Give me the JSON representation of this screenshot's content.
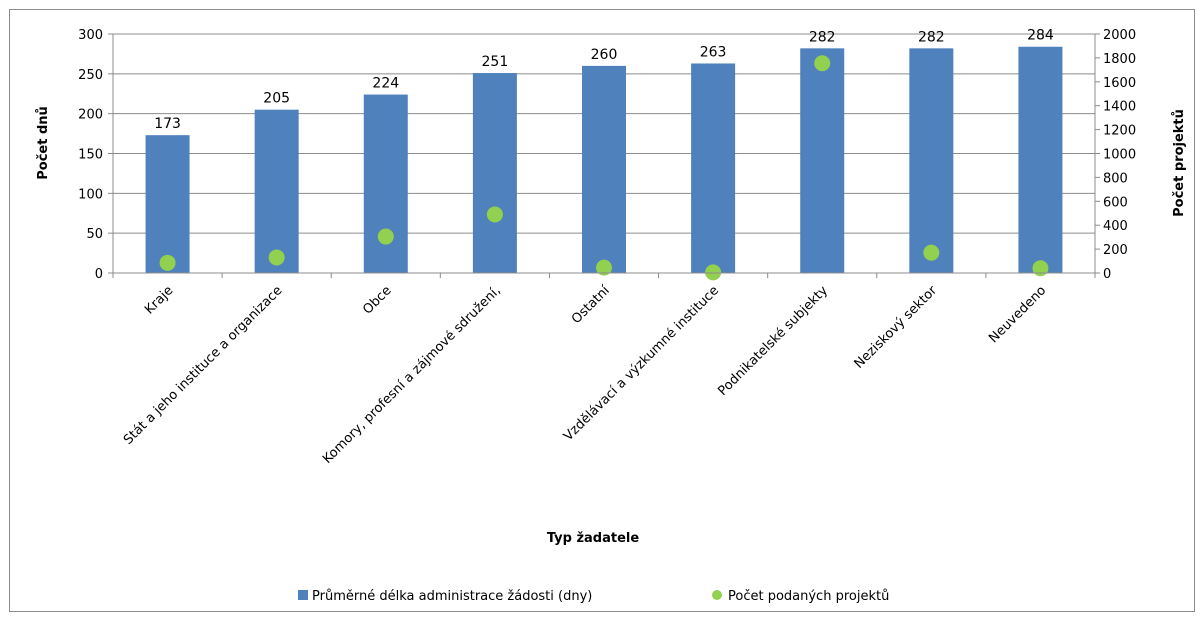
{
  "chart_data": {
    "type": "bar",
    "categories": [
      "Kraje",
      "Stát a jeho instituce a organizace",
      "Obce",
      "Komory, profesní a zájmové sdružení,",
      "Ostatní",
      "Vzdělávací a výzkumné instituce",
      "Podnikatelské subjekty",
      "Neziskový sektor",
      "Neuvedeno"
    ],
    "series": [
      {
        "name": "Průměrné délka administrace žádosti  (dny)",
        "type": "bar",
        "axis": "left",
        "color": "#4f81bd",
        "values": [
          173,
          205,
          224,
          251,
          260,
          263,
          282,
          282,
          284
        ]
      },
      {
        "name": "Počet podaných projektů",
        "type": "scatter",
        "axis": "right",
        "color": "#92d050",
        "values": [
          85,
          130,
          305,
          490,
          45,
          5,
          1755,
          170,
          40
        ]
      }
    ],
    "xlabel": "Typ žadatele",
    "ylabel": "Počet dnů",
    "y2label": "Počet projektů",
    "ylim": [
      0,
      300
    ],
    "y2lim": [
      0,
      2000
    ],
    "yticks": [
      0,
      50,
      100,
      150,
      200,
      250,
      300
    ],
    "y2ticks": [
      0,
      200,
      400,
      600,
      800,
      1000,
      1200,
      1400,
      1600,
      1800,
      2000
    ],
    "grid": true,
    "legend_position": "bottom"
  }
}
